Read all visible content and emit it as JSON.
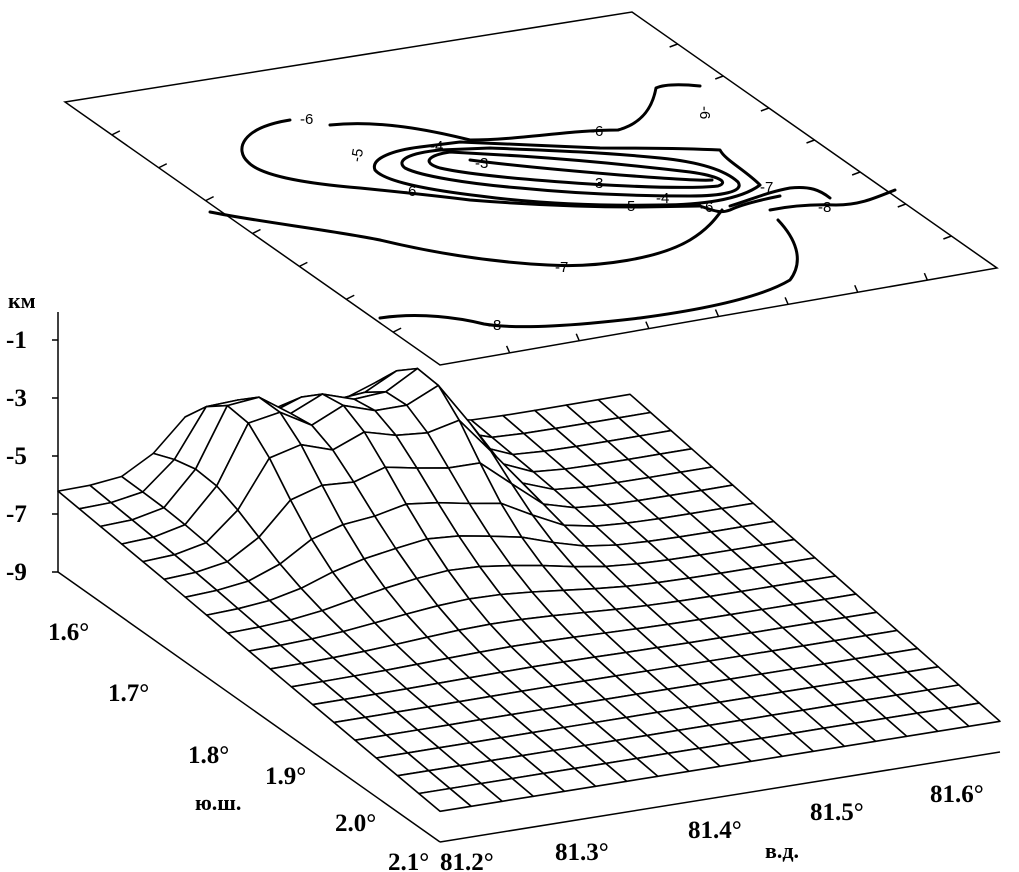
{
  "chart_data": [
    {
      "type": "contour",
      "levels": [
        -3,
        -4,
        -5,
        -6,
        -7,
        -8
      ],
      "contour_labels": [
        "-6",
        "-5",
        "-4",
        "-3",
        "-6",
        "-3",
        "-5",
        "-4",
        "-6",
        "-7",
        "-8",
        "-6",
        "-7",
        "-8",
        "-6"
      ],
      "xlim": [
        81.2,
        81.65
      ],
      "ylim": [
        1.55,
        2.1
      ]
    },
    {
      "type": "surface",
      "title": "",
      "zlabel": "км",
      "xlabel": "в.д.",
      "ylabel": "ю.ш.",
      "zticks": [
        "-1",
        "-3",
        "-5",
        "-7",
        "-9"
      ],
      "zlim": [
        -9,
        0
      ],
      "xticks": [
        "81.2°",
        "81.3°",
        "81.4°",
        "81.5°",
        "81.6°"
      ],
      "yticks": [
        "1.6°",
        "1.7°",
        "1.8°",
        "1.9°",
        "2.0°",
        "2.1°"
      ],
      "xlim": [
        81.2,
        81.65
      ],
      "ylim": [
        1.55,
        2.1
      ],
      "grid_size": [
        19,
        19
      ],
      "peaks": [
        {
          "lon": 81.31,
          "lat": 1.62,
          "depth_km": -3.2
        },
        {
          "lon": 81.45,
          "lat": 1.62,
          "depth_km": -3.4
        },
        {
          "lon": 81.38,
          "lat": 1.62,
          "depth_km": -4.2
        }
      ],
      "background_depth_km": [
        -6.5,
        -8.5
      ],
      "line_color": "#000000"
    }
  ]
}
